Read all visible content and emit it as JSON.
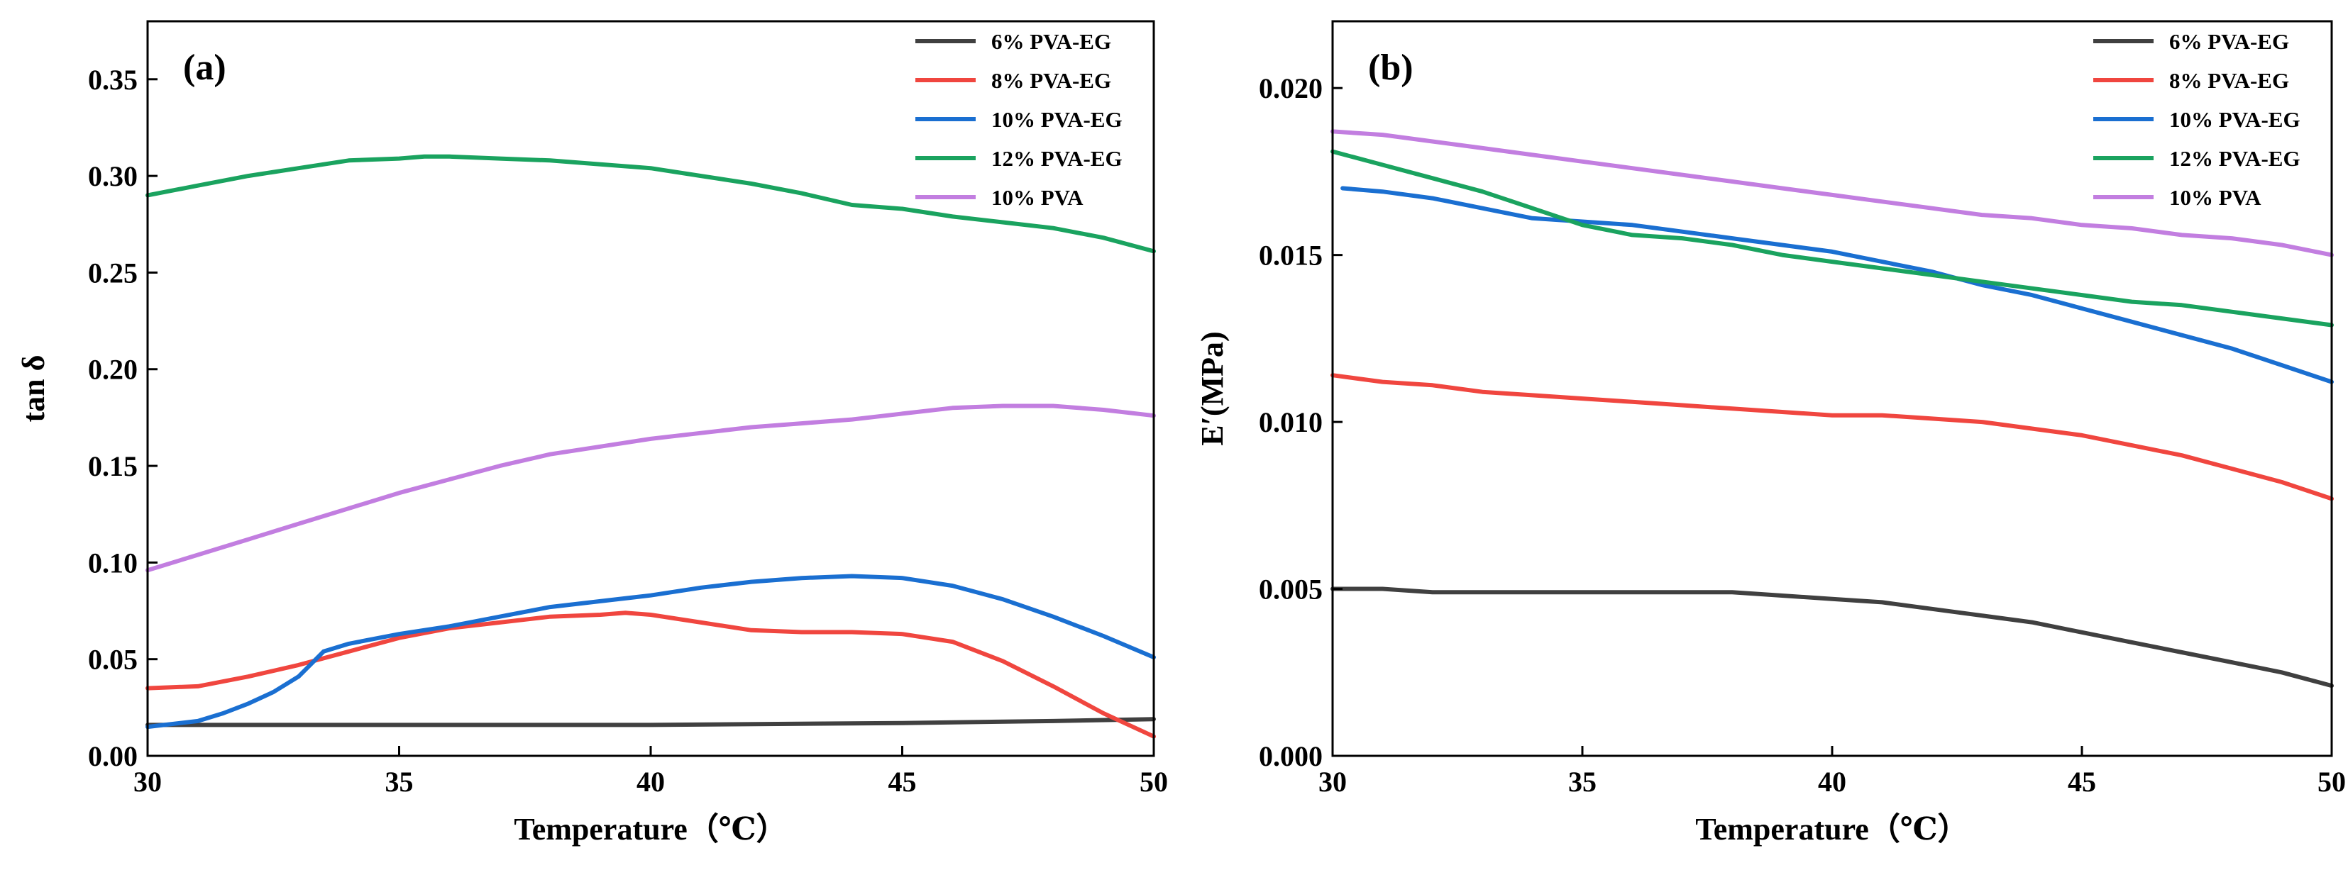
{
  "chart_data": [
    {
      "id": "a",
      "type": "line",
      "panel_label": "(a)",
      "title": "",
      "xlabel": "Temperature（℃）",
      "ylabel": "tan δ",
      "xlim": [
        30,
        50
      ],
      "ylim": [
        0,
        0.38
      ],
      "xticks": [
        30,
        35,
        40,
        45,
        50
      ],
      "xtick_labels": [
        "30",
        "35",
        "40",
        "45",
        "50"
      ],
      "yticks": [
        0,
        0.05,
        0.1,
        0.15,
        0.2,
        0.25,
        0.3,
        0.35
      ],
      "ytick_labels": [
        "0.00",
        "0.05",
        "0.10",
        "0.15",
        "0.20",
        "0.25",
        "0.30",
        "0.35"
      ],
      "grid": false,
      "legend_position": "top-right",
      "series": [
        {
          "name": "6% PVA-EG",
          "color": "#404040",
          "x": [
            30,
            35,
            40,
            45,
            48,
            50
          ],
          "y": [
            0.016,
            0.016,
            0.016,
            0.017,
            0.018,
            0.019
          ]
        },
        {
          "name": "8% PVA-EG",
          "color": "#f0463f",
          "x": [
            30,
            31,
            32,
            33,
            34,
            35,
            36,
            37,
            38,
            39,
            39.5,
            40,
            41,
            42,
            43,
            44,
            45,
            46,
            47,
            48,
            49,
            50
          ],
          "y": [
            0.035,
            0.036,
            0.041,
            0.047,
            0.054,
            0.061,
            0.066,
            0.069,
            0.072,
            0.073,
            0.074,
            0.073,
            0.069,
            0.065,
            0.064,
            0.064,
            0.063,
            0.059,
            0.049,
            0.036,
            0.022,
            0.01
          ]
        },
        {
          "name": "10% PVA-EG",
          "color": "#1a6fd1",
          "x": [
            30,
            31,
            31.5,
            32,
            32.5,
            33,
            33.5,
            34,
            35,
            36,
            37,
            38,
            39,
            40,
            41,
            42,
            43,
            44,
            45,
            46,
            47,
            48,
            49,
            50
          ],
          "y": [
            0.015,
            0.018,
            0.022,
            0.027,
            0.033,
            0.041,
            0.054,
            0.058,
            0.063,
            0.067,
            0.072,
            0.077,
            0.08,
            0.083,
            0.087,
            0.09,
            0.092,
            0.093,
            0.092,
            0.088,
            0.081,
            0.072,
            0.062,
            0.051
          ]
        },
        {
          "name": "12% PVA-EG",
          "color": "#1aa35f",
          "x": [
            30,
            31,
            32,
            33,
            34,
            35,
            35.5,
            36,
            37,
            38,
            39,
            40,
            41,
            42,
            43,
            44,
            45,
            46,
            47,
            48,
            49,
            50
          ],
          "y": [
            0.29,
            0.295,
            0.3,
            0.304,
            0.308,
            0.309,
            0.31,
            0.31,
            0.309,
            0.308,
            0.306,
            0.304,
            0.3,
            0.296,
            0.291,
            0.285,
            0.283,
            0.279,
            0.276,
            0.273,
            0.268,
            0.261
          ]
        },
        {
          "name": "10% PVA",
          "color": "#c27ee0",
          "x": [
            30,
            31,
            32,
            33,
            34,
            35,
            36,
            37,
            38,
            39,
            40,
            41,
            42,
            43,
            44,
            45,
            46,
            47,
            48,
            49,
            50
          ],
          "y": [
            0.096,
            0.104,
            0.112,
            0.12,
            0.128,
            0.136,
            0.143,
            0.15,
            0.156,
            0.16,
            0.164,
            0.167,
            0.17,
            0.172,
            0.174,
            0.177,
            0.18,
            0.181,
            0.181,
            0.179,
            0.176
          ]
        }
      ]
    },
    {
      "id": "b",
      "type": "line",
      "panel_label": "(b)",
      "title": "",
      "xlabel": "Temperature（℃）",
      "ylabel": "E′(MPa)",
      "xlim": [
        30,
        50
      ],
      "ylim": [
        0,
        0.022
      ],
      "xticks": [
        30,
        35,
        40,
        45,
        50
      ],
      "xtick_labels": [
        "30",
        "35",
        "40",
        "45",
        "50"
      ],
      "yticks": [
        0,
        0.005,
        0.01,
        0.015,
        0.02
      ],
      "ytick_labels": [
        "0.000",
        "0.005",
        "0.010",
        "0.015",
        "0.020"
      ],
      "grid": false,
      "legend_position": "top-right",
      "series": [
        {
          "name": "6% PVA-EG",
          "color": "#404040",
          "x": [
            30,
            31,
            32,
            33,
            34,
            35,
            36,
            37,
            38,
            39,
            40,
            41,
            42,
            43,
            44,
            45,
            46,
            47,
            48,
            49,
            50
          ],
          "y": [
            0.005,
            0.005,
            0.0049,
            0.0049,
            0.0049,
            0.0049,
            0.0049,
            0.0049,
            0.0049,
            0.0048,
            0.0047,
            0.0046,
            0.0044,
            0.0042,
            0.004,
            0.0037,
            0.0034,
            0.0031,
            0.0028,
            0.0025,
            0.0021
          ]
        },
        {
          "name": "8% PVA-EG",
          "color": "#f0463f",
          "x": [
            30,
            31,
            32,
            33,
            34,
            35,
            36,
            37,
            38,
            39,
            40,
            41,
            42,
            43,
            44,
            45,
            46,
            47,
            48,
            49,
            50
          ],
          "y": [
            0.0114,
            0.0112,
            0.0111,
            0.0109,
            0.0108,
            0.0107,
            0.0106,
            0.0105,
            0.0104,
            0.0103,
            0.0102,
            0.0102,
            0.0101,
            0.01,
            0.0098,
            0.0096,
            0.0093,
            0.009,
            0.0086,
            0.0082,
            0.0077
          ]
        },
        {
          "name": "10% PVA-EG",
          "color": "#1a6fd1",
          "x": [
            30.2,
            31,
            32,
            33,
            34,
            35,
            36,
            37,
            38,
            39,
            40,
            41,
            42,
            43,
            44,
            45,
            46,
            47,
            48,
            49,
            50
          ],
          "y": [
            0.017,
            0.0169,
            0.0167,
            0.0164,
            0.0161,
            0.016,
            0.0159,
            0.0157,
            0.0155,
            0.0153,
            0.0151,
            0.0148,
            0.0145,
            0.0141,
            0.0138,
            0.0134,
            0.013,
            0.0126,
            0.0122,
            0.0117,
            0.0112
          ]
        },
        {
          "name": "12% PVA-EG",
          "color": "#1aa35f",
          "x": [
            30,
            31,
            32,
            33,
            34,
            35,
            36,
            37,
            38,
            39,
            40,
            41,
            42,
            43,
            44,
            45,
            46,
            47,
            48,
            49,
            50
          ],
          "y": [
            0.0181,
            0.0177,
            0.0173,
            0.0169,
            0.0164,
            0.0159,
            0.0156,
            0.0155,
            0.0153,
            0.015,
            0.0148,
            0.0146,
            0.0144,
            0.0142,
            0.014,
            0.0138,
            0.0136,
            0.0135,
            0.0133,
            0.0131,
            0.0129
          ]
        },
        {
          "name": "10% PVA",
          "color": "#c27ee0",
          "x": [
            30,
            31,
            32,
            33,
            34,
            35,
            36,
            37,
            38,
            39,
            40,
            41,
            42,
            43,
            44,
            45,
            46,
            47,
            48,
            49,
            50
          ],
          "y": [
            0.0187,
            0.0186,
            0.0184,
            0.0182,
            0.018,
            0.0178,
            0.0176,
            0.0174,
            0.0172,
            0.017,
            0.0168,
            0.0166,
            0.0164,
            0.0162,
            0.0161,
            0.0159,
            0.0158,
            0.0156,
            0.0155,
            0.0153,
            0.015
          ]
        }
      ]
    }
  ]
}
